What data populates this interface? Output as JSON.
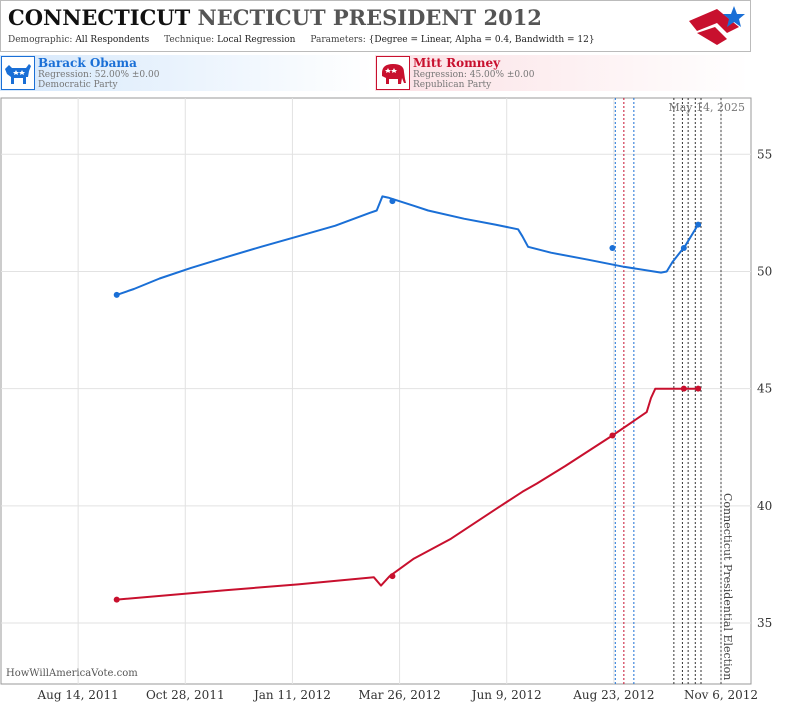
{
  "header": {
    "title_part1": "CONNECTICUT",
    "title_part2": "NECTICUT PRESIDENT 2012",
    "demographic_label": "Demographic:",
    "demographic_value": "All Respondents",
    "technique_label": "Technique:",
    "technique_value": "Local Regression",
    "parameters_label": "Parameters:",
    "parameters_value": "{Degree = Linear, Alpha = 0.4, Bandwidth = 12}",
    "logo_icon": "star-flag-logo-icon"
  },
  "candidates": [
    {
      "name": "Barack Obama",
      "regression": "Regression: 52.00% ±0.00",
      "party": "Democratic Party",
      "icon": "donkey-icon",
      "color": "#1a6fd6"
    },
    {
      "name": "Mitt Romney",
      "regression": "Regression: 45.00% ±0.00",
      "party": "Republican Party",
      "icon": "elephant-icon",
      "color": "#c8102e"
    }
  ],
  "attribution": "HowWillAmericaVote.com",
  "chart_data": {
    "type": "line",
    "title": "",
    "xlabel": "",
    "ylabel": "",
    "x_range": [
      "2011-06-21",
      "2012-11-27"
    ],
    "ylim": [
      32.4,
      57.4
    ],
    "y_ticks": [
      35,
      40,
      45,
      50,
      55
    ],
    "x_ticks": [
      {
        "date": "2011-08-14",
        "label": "Aug 14, 2011"
      },
      {
        "date": "2011-10-28",
        "label": "Oct 28, 2011"
      },
      {
        "date": "2012-01-11",
        "label": "Jan 11, 2012"
      },
      {
        "date": "2012-03-26",
        "label": "Mar 26, 2012"
      },
      {
        "date": "2012-06-09",
        "label": "Jun 9, 2012"
      },
      {
        "date": "2012-08-23",
        "label": "Aug 23, 2012"
      },
      {
        "date": "2012-11-06",
        "label": "Nov 6, 2012"
      }
    ],
    "grid": true,
    "date_label": "May 14, 2025",
    "event_label": "Connecticut Presidential Election",
    "event_date": "2012-11-06",
    "poll_lines": [
      {
        "date": "2012-08-24",
        "color": "#1a6fd6"
      },
      {
        "date": "2012-08-30",
        "color": "#c8102e"
      },
      {
        "date": "2012-09-06",
        "color": "#1a6fd6"
      },
      {
        "date": "2012-10-04",
        "color": "#333333"
      },
      {
        "date": "2012-10-10",
        "color": "#333333"
      },
      {
        "date": "2012-10-14",
        "color": "#333333"
      },
      {
        "date": "2012-10-19",
        "color": "#333333"
      },
      {
        "date": "2012-10-23",
        "color": "#333333"
      }
    ],
    "series": [
      {
        "name": "Barack Obama",
        "color": "#1a6fd6",
        "points": [
          {
            "x": "2011-09-10",
            "y": 49.0
          },
          {
            "x": "2012-03-21",
            "y": 53.0
          },
          {
            "x": "2012-08-22",
            "y": 51.0
          },
          {
            "x": "2012-10-11",
            "y": 51.0
          },
          {
            "x": "2012-10-21",
            "y": 52.0
          }
        ],
        "trend": [
          {
            "x": "2011-09-10",
            "y": 49.0
          },
          {
            "x": "2011-09-22",
            "y": 49.25
          },
          {
            "x": "2011-10-10",
            "y": 49.7
          },
          {
            "x": "2011-11-01",
            "y": 50.15
          },
          {
            "x": "2011-11-25",
            "y": 50.6
          },
          {
            "x": "2011-12-20",
            "y": 51.05
          },
          {
            "x": "2012-01-15",
            "y": 51.5
          },
          {
            "x": "2012-02-10",
            "y": 51.95
          },
          {
            "x": "2012-03-05",
            "y": 52.5
          },
          {
            "x": "2012-03-10",
            "y": 52.6
          },
          {
            "x": "2012-03-14",
            "y": 53.2
          },
          {
            "x": "2012-03-18",
            "y": 53.15
          },
          {
            "x": "2012-04-05",
            "y": 52.8
          },
          {
            "x": "2012-04-15",
            "y": 52.6
          },
          {
            "x": "2012-05-10",
            "y": 52.25
          },
          {
            "x": "2012-06-01",
            "y": 52.0
          },
          {
            "x": "2012-06-17",
            "y": 51.8
          },
          {
            "x": "2012-06-20",
            "y": 51.5
          },
          {
            "x": "2012-06-24",
            "y": 51.05
          },
          {
            "x": "2012-07-10",
            "y": 50.8
          },
          {
            "x": "2012-08-05",
            "y": 50.5
          },
          {
            "x": "2012-08-30",
            "y": 50.2
          },
          {
            "x": "2012-09-25",
            "y": 49.95
          },
          {
            "x": "2012-09-29",
            "y": 50.0
          },
          {
            "x": "2012-10-03",
            "y": 50.4
          },
          {
            "x": "2012-10-12",
            "y": 51.1
          },
          {
            "x": "2012-10-21",
            "y": 52.0
          }
        ]
      },
      {
        "name": "Mitt Romney",
        "color": "#c8102e",
        "points": [
          {
            "x": "2011-09-10",
            "y": 36.0
          },
          {
            "x": "2012-03-21",
            "y": 37.0
          },
          {
            "x": "2012-08-22",
            "y": 43.0
          },
          {
            "x": "2012-10-11",
            "y": 45.0
          },
          {
            "x": "2012-10-21",
            "y": 45.0
          }
        ],
        "trend": [
          {
            "x": "2011-09-10",
            "y": 36.0
          },
          {
            "x": "2011-11-25",
            "y": 36.4
          },
          {
            "x": "2012-01-15",
            "y": 36.65
          },
          {
            "x": "2012-03-08",
            "y": 36.95
          },
          {
            "x": "2012-03-13",
            "y": 36.6
          },
          {
            "x": "2012-03-19",
            "y": 37.0
          },
          {
            "x": "2012-04-05",
            "y": 37.75
          },
          {
            "x": "2012-05-01",
            "y": 38.6
          },
          {
            "x": "2012-06-01",
            "y": 39.85
          },
          {
            "x": "2012-06-20",
            "y": 40.6
          },
          {
            "x": "2012-06-30",
            "y": 40.95
          },
          {
            "x": "2012-07-20",
            "y": 41.7
          },
          {
            "x": "2012-08-22",
            "y": 43.0
          },
          {
            "x": "2012-09-15",
            "y": 44.0
          },
          {
            "x": "2012-09-18",
            "y": 44.6
          },
          {
            "x": "2012-09-21",
            "y": 45.0
          },
          {
            "x": "2012-10-21",
            "y": 45.0
          }
        ]
      }
    ]
  }
}
